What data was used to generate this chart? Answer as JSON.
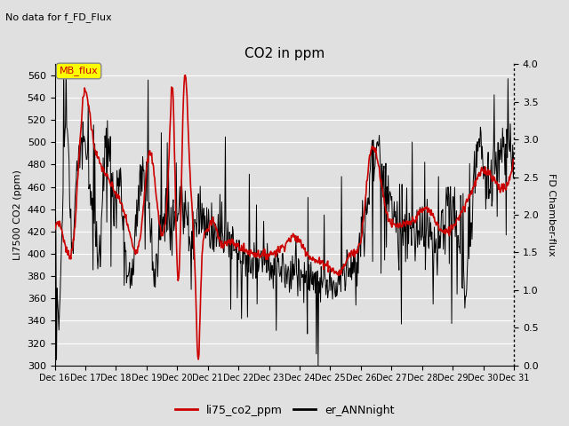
{
  "title": "CO2 in ppm",
  "subtitle": "No data for f_FD_Flux",
  "ylabel_left": "LI7500 CO2 (ppm)",
  "ylabel_right": "FD Chamber-flux",
  "ylim_left": [
    300,
    570
  ],
  "ylim_right": [
    0.0,
    4.0
  ],
  "yticks_left": [
    300,
    320,
    340,
    360,
    380,
    400,
    420,
    440,
    460,
    480,
    500,
    520,
    540,
    560
  ],
  "yticks_right": [
    0.0,
    0.5,
    1.0,
    1.5,
    2.0,
    2.5,
    3.0,
    3.5,
    4.0
  ],
  "xtick_labels": [
    "Dec 16",
    "Dec 17",
    "Dec 18",
    "Dec 19",
    "Dec 20",
    "Dec 21",
    "Dec 22",
    "Dec 23",
    "Dec 24",
    "Dec 25",
    "Dec 26",
    "Dec 27",
    "Dec 28",
    "Dec 29",
    "Dec 30",
    "Dec 31"
  ],
  "legend_entries": [
    "li75_co2_ppm",
    "er_ANNnight"
  ],
  "legend_colors": [
    "#cc0000",
    "#000000"
  ],
  "line_red_color": "#cc0000",
  "line_black_color": "#000000",
  "mb_flux_box_color": "#ffff00",
  "mb_flux_text_color": "#cc0000",
  "bg_color": "#e0e0e0",
  "plot_bg_color": "#e0e0e0",
  "grid_color": "#ffffff",
  "figsize": [
    6.4,
    4.8
  ],
  "dpi": 100
}
